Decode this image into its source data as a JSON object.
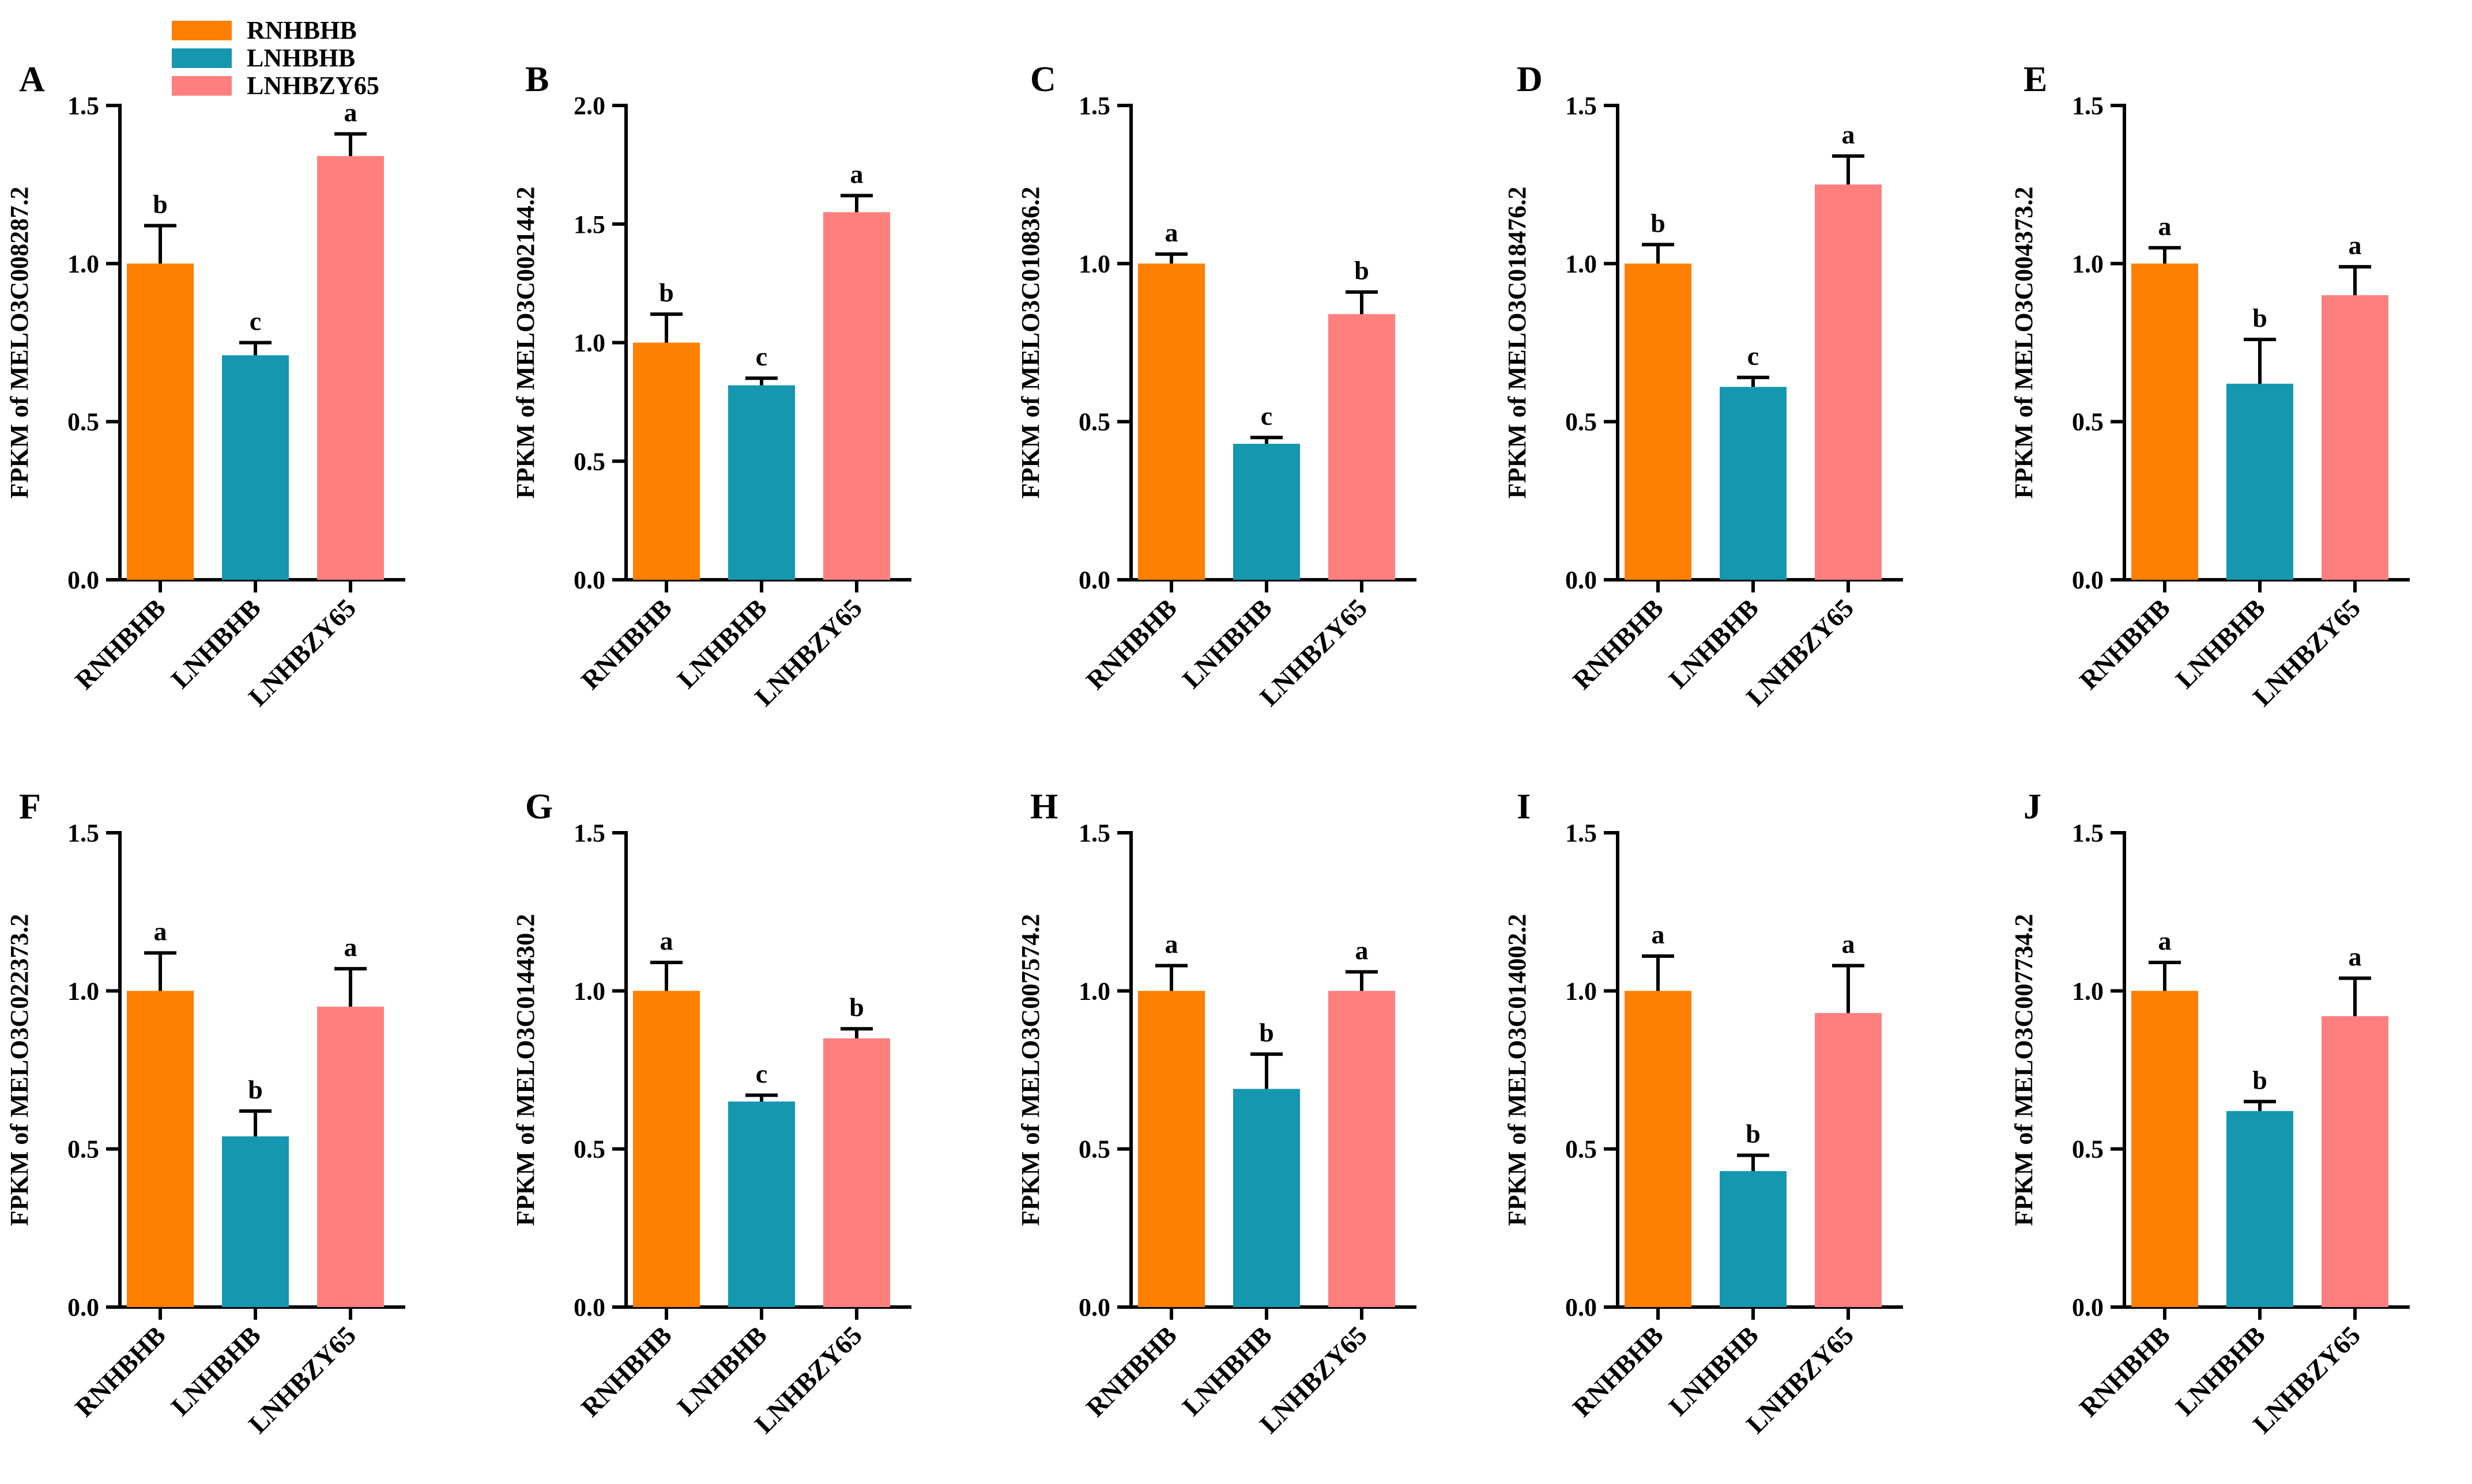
{
  "legend": {
    "items": [
      {
        "label": "RNHBHB",
        "color": "#FF7F00"
      },
      {
        "label": "LNHBHB",
        "color": "#1597B0"
      },
      {
        "label": "LNHBZY65",
        "color": "#FF7F7F"
      }
    ]
  },
  "chart_data": [
    {
      "type": "bar",
      "panel": "A",
      "ylabel": "FPKM of MELO3C008287.2",
      "ylim": [
        0,
        1.5
      ],
      "yticks": [
        "0.0",
        "0.5",
        "1.0",
        "1.5"
      ],
      "categories": [
        "RNHBHB",
        "LNHBHB",
        "LNHBZY65"
      ],
      "values": [
        1.0,
        0.71,
        1.34
      ],
      "errors": [
        0.12,
        0.04,
        0.07
      ],
      "letters": [
        "b",
        "c",
        "a"
      ]
    },
    {
      "type": "bar",
      "panel": "B",
      "ylabel": "FPKM of MELO3C002144.2",
      "ylim": [
        0,
        2.0
      ],
      "yticks": [
        "0.0",
        "0.5",
        "1.0",
        "1.5",
        "2.0"
      ],
      "categories": [
        "RNHBHB",
        "LNHBHB",
        "LNHBZY65"
      ],
      "values": [
        1.0,
        0.82,
        1.55
      ],
      "errors": [
        0.12,
        0.03,
        0.07
      ],
      "letters": [
        "b",
        "c",
        "a"
      ]
    },
    {
      "type": "bar",
      "panel": "C",
      "ylabel": "FPKM of MELO3C010836.2",
      "ylim": [
        0,
        1.5
      ],
      "yticks": [
        "0.0",
        "0.5",
        "1.0",
        "1.5"
      ],
      "categories": [
        "RNHBHB",
        "LNHBHB",
        "LNHBZY65"
      ],
      "values": [
        1.0,
        0.43,
        0.84
      ],
      "errors": [
        0.03,
        0.02,
        0.07
      ],
      "letters": [
        "a",
        "c",
        "b"
      ]
    },
    {
      "type": "bar",
      "panel": "D",
      "ylabel": "FPKM of MELO3C018476.2",
      "ylim": [
        0,
        1.5
      ],
      "yticks": [
        "0.0",
        "0.5",
        "1.0",
        "1.5"
      ],
      "categories": [
        "RNHBHB",
        "LNHBHB",
        "LNHBZY65"
      ],
      "values": [
        1.0,
        0.61,
        1.25
      ],
      "errors": [
        0.06,
        0.03,
        0.09
      ],
      "letters": [
        "b",
        "c",
        "a"
      ]
    },
    {
      "type": "bar",
      "panel": "E",
      "ylabel": "FPKM of MELO3C004373.2",
      "ylim": [
        0,
        1.5
      ],
      "yticks": [
        "0.0",
        "0.5",
        "1.0",
        "1.5"
      ],
      "categories": [
        "RNHBHB",
        "LNHBHB",
        "LNHBZY65"
      ],
      "values": [
        1.0,
        0.62,
        0.9
      ],
      "errors": [
        0.05,
        0.14,
        0.09
      ],
      "letters": [
        "a",
        "b",
        "a"
      ]
    },
    {
      "type": "bar",
      "panel": "F",
      "ylabel": "FPKM of MELO3C022373.2",
      "ylim": [
        0,
        1.5
      ],
      "yticks": [
        "0.0",
        "0.5",
        "1.0",
        "1.5"
      ],
      "categories": [
        "RNHBHB",
        "LNHBHB",
        "LNHBZY65"
      ],
      "values": [
        1.0,
        0.54,
        0.95
      ],
      "errors": [
        0.12,
        0.08,
        0.12
      ],
      "letters": [
        "a",
        "b",
        "a"
      ]
    },
    {
      "type": "bar",
      "panel": "G",
      "ylabel": "FPKM of MELO3C014430.2",
      "ylim": [
        0,
        1.5
      ],
      "yticks": [
        "0.0",
        "0.5",
        "1.0",
        "1.5"
      ],
      "categories": [
        "RNHBHB",
        "LNHBHB",
        "LNHBZY65"
      ],
      "values": [
        1.0,
        0.65,
        0.85
      ],
      "errors": [
        0.09,
        0.02,
        0.03
      ],
      "letters": [
        "a",
        "c",
        "b"
      ]
    },
    {
      "type": "bar",
      "panel": "H",
      "ylabel": "FPKM of MELO3C007574.2",
      "ylim": [
        0,
        1.5
      ],
      "yticks": [
        "0.0",
        "0.5",
        "1.0",
        "1.5"
      ],
      "categories": [
        "RNHBHB",
        "LNHBHB",
        "LNHBZY65"
      ],
      "values": [
        1.0,
        0.69,
        1.0
      ],
      "errors": [
        0.08,
        0.11,
        0.06
      ],
      "letters": [
        "a",
        "b",
        "a"
      ]
    },
    {
      "type": "bar",
      "panel": "I",
      "ylabel": "FPKM of MELO3C014002.2",
      "ylim": [
        0,
        1.5
      ],
      "yticks": [
        "0.0",
        "0.5",
        "1.0",
        "1.5"
      ],
      "categories": [
        "RNHBHB",
        "LNHBHB",
        "LNHBZY65"
      ],
      "values": [
        1.0,
        0.43,
        0.93
      ],
      "errors": [
        0.11,
        0.05,
        0.15
      ],
      "letters": [
        "a",
        "b",
        "a"
      ]
    },
    {
      "type": "bar",
      "panel": "J",
      "ylabel": "FPKM of MELO3C007734.2",
      "ylim": [
        0,
        1.5
      ],
      "yticks": [
        "0.0",
        "0.5",
        "1.0",
        "1.5"
      ],
      "categories": [
        "RNHBHB",
        "LNHBHB",
        "LNHBZY65"
      ],
      "values": [
        1.0,
        0.62,
        0.92
      ],
      "errors": [
        0.09,
        0.03,
        0.12
      ],
      "letters": [
        "a",
        "b",
        "a"
      ]
    }
  ]
}
